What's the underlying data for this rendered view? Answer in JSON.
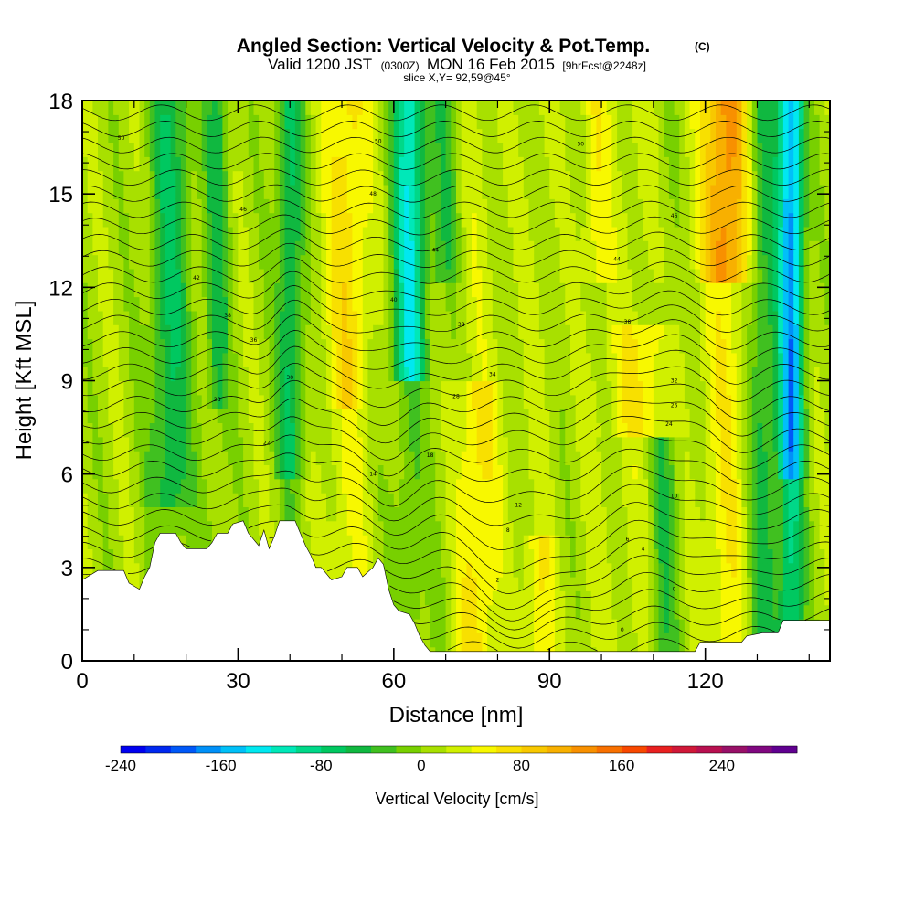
{
  "title": {
    "main": "Angled Section: Vertical Velocity & Pot.Temp.",
    "mark": "(C)",
    "valid_a": "Valid 1200 JST",
    "valid_b": "(0300Z)",
    "valid_c": "MON 16 Feb 2015",
    "valid_d": "[9hrFcst@2248z]",
    "slice": "slice X,Y= 92,59@45°"
  },
  "chart_data": {
    "type": "heatmap",
    "xlabel": "Distance [nm]",
    "ylabel": "Height [Kft MSL]",
    "xlim": [
      0,
      144
    ],
    "ylim": [
      0,
      18
    ],
    "x_ticks": [
      "0",
      "30",
      "60",
      "90",
      "120"
    ],
    "x_tick_values": [
      0,
      30,
      60,
      90,
      120
    ],
    "y_ticks": [
      "0",
      "3",
      "6",
      "9",
      "12",
      "15",
      "18"
    ],
    "y_tick_values": [
      0,
      3,
      6,
      9,
      12,
      15,
      18
    ],
    "terrain_kft": [
      [
        0,
        2.6
      ],
      [
        3,
        2.9
      ],
      [
        8,
        2.9
      ],
      [
        9,
        2.5
      ],
      [
        11,
        2.3
      ],
      [
        12,
        2.7
      ],
      [
        13,
        3.0
      ],
      [
        14,
        3.8
      ],
      [
        15,
        4.1
      ],
      [
        18,
        4.1
      ],
      [
        19,
        3.8
      ],
      [
        20,
        3.6
      ],
      [
        22,
        3.6
      ],
      [
        24,
        3.6
      ],
      [
        25,
        3.8
      ],
      [
        26,
        4.1
      ],
      [
        28,
        4.1
      ],
      [
        29,
        4.4
      ],
      [
        31,
        4.5
      ],
      [
        32,
        4.1
      ],
      [
        34,
        3.7
      ],
      [
        35,
        4.2
      ],
      [
        36,
        3.6
      ],
      [
        37,
        4.0
      ],
      [
        38,
        4.5
      ],
      [
        41,
        4.5
      ],
      [
        42,
        4.1
      ],
      [
        43,
        3.7
      ],
      [
        44,
        3.4
      ],
      [
        45,
        3.0
      ],
      [
        46,
        3.0
      ],
      [
        47,
        2.8
      ],
      [
        48,
        2.6
      ],
      [
        50,
        2.7
      ],
      [
        51,
        3.0
      ],
      [
        53,
        3.0
      ],
      [
        54,
        2.7
      ],
      [
        56,
        3.0
      ],
      [
        57,
        3.3
      ],
      [
        58,
        3.1
      ],
      [
        59,
        2.3
      ],
      [
        60,
        1.8
      ],
      [
        61,
        1.6
      ],
      [
        63,
        1.5
      ],
      [
        64,
        1.2
      ],
      [
        65,
        0.8
      ],
      [
        66,
        0.5
      ],
      [
        67,
        0.3
      ],
      [
        118,
        0.3
      ],
      [
        119,
        0.6
      ],
      [
        127,
        0.6
      ],
      [
        128,
        0.8
      ],
      [
        131,
        0.9
      ],
      [
        134,
        0.9
      ],
      [
        135,
        1.3
      ],
      [
        144,
        1.3
      ]
    ],
    "contour_interval_c": 2,
    "theta_base_c": -4,
    "theta_contour_labels": [
      {
        "x": 7.5,
        "y": 16.8,
        "label": "50"
      },
      {
        "x": 31,
        "y": 14.5,
        "label": "46"
      },
      {
        "x": 57,
        "y": 16.7,
        "label": "50"
      },
      {
        "x": 56,
        "y": 15.0,
        "label": "48"
      },
      {
        "x": 96,
        "y": 16.6,
        "label": "50"
      },
      {
        "x": 114,
        "y": 14.3,
        "label": "46"
      },
      {
        "x": 68,
        "y": 13.2,
        "label": "44"
      },
      {
        "x": 103,
        "y": 12.9,
        "label": "44"
      },
      {
        "x": 22,
        "y": 12.3,
        "label": "42"
      },
      {
        "x": 60,
        "y": 11.6,
        "label": "40"
      },
      {
        "x": 28,
        "y": 11.1,
        "label": "38"
      },
      {
        "x": 73,
        "y": 10.8,
        "label": "38"
      },
      {
        "x": 105,
        "y": 10.9,
        "label": "38"
      },
      {
        "x": 33,
        "y": 10.3,
        "label": "36"
      },
      {
        "x": 79,
        "y": 9.2,
        "label": "34"
      },
      {
        "x": 114,
        "y": 9.0,
        "label": "32"
      },
      {
        "x": 40,
        "y": 9.1,
        "label": "30"
      },
      {
        "x": 26,
        "y": 8.4,
        "label": "28"
      },
      {
        "x": 72,
        "y": 8.5,
        "label": "28"
      },
      {
        "x": 114,
        "y": 8.2,
        "label": "26"
      },
      {
        "x": 113,
        "y": 7.6,
        "label": "24"
      },
      {
        "x": 35.5,
        "y": 7.0,
        "label": "22"
      },
      {
        "x": 67,
        "y": 6.6,
        "label": "18"
      },
      {
        "x": 56,
        "y": 6.0,
        "label": "14"
      },
      {
        "x": 84,
        "y": 5.0,
        "label": "12"
      },
      {
        "x": 114,
        "y": 5.3,
        "label": "10"
      },
      {
        "x": 82,
        "y": 4.2,
        "label": "8"
      },
      {
        "x": 105,
        "y": 3.9,
        "label": "6"
      },
      {
        "x": 108,
        "y": 3.6,
        "label": "4"
      },
      {
        "x": 80,
        "y": 2.6,
        "label": "2"
      },
      {
        "x": 114,
        "y": 2.3,
        "label": "0"
      },
      {
        "x": 104,
        "y": 1.0,
        "label": "0"
      }
    ],
    "colorbar": {
      "title": "Vertical Velocity [cm/s]",
      "min": -240,
      "max": 300,
      "step": 20,
      "ticks": [
        "-240",
        "-160",
        "-80",
        "0",
        "80",
        "160",
        "240"
      ],
      "tick_values": [
        -240,
        -160,
        -80,
        0,
        80,
        160,
        240
      ],
      "colors": [
        "#0000f0",
        "#0028f0",
        "#0058f8",
        "#0090f8",
        "#00c0f8",
        "#00e8f0",
        "#00e8b8",
        "#00d888",
        "#00c860",
        "#10b840",
        "#40c020",
        "#78d000",
        "#a8e000",
        "#d0f000",
        "#f8f800",
        "#f8e000",
        "#f8c800",
        "#f8b000",
        "#f89000",
        "#f87000",
        "#f84800",
        "#e82020",
        "#d01838",
        "#b81050",
        "#981068",
        "#800880",
        "#600090"
      ]
    }
  }
}
